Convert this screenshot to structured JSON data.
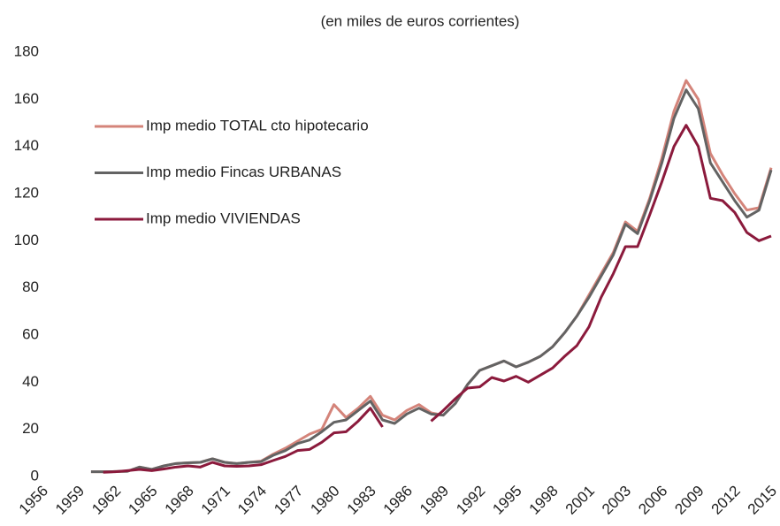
{
  "chart_data": {
    "type": "line",
    "subtitle": "(en miles de euros corrientes)",
    "categories": [
      "1956",
      null,
      null,
      "1959",
      null,
      null,
      "1962",
      null,
      null,
      "1965",
      null,
      null,
      "1968",
      null,
      null,
      "1971",
      null,
      null,
      "1974",
      null,
      null,
      "1977",
      null,
      null,
      "1980",
      null,
      null,
      "1983",
      null,
      null,
      "1986",
      null,
      null,
      "1989",
      null,
      null,
      "1992",
      null,
      null,
      "1995",
      null,
      null,
      "1998",
      null,
      null,
      "2001",
      null,
      null,
      "2003",
      null,
      null,
      "2006",
      null,
      null,
      "2009",
      null,
      null,
      "2012",
      null,
      null,
      "2015"
    ],
    "series": [
      {
        "name": "Imp medio TOTAL cto hipotecario",
        "color": "#d4847a",
        "values": [
          null,
          null,
          null,
          null,
          2,
          2,
          2.1,
          2.2,
          4,
          3,
          4.5,
          5.5,
          5.8,
          6,
          7.5,
          6,
          5.5,
          6,
          6.5,
          9.5,
          12,
          15,
          18,
          20,
          30.5,
          25,
          29,
          34,
          26,
          24,
          28,
          30.5,
          27,
          26,
          31,
          39,
          45,
          47,
          49,
          46.5,
          48.5,
          51,
          55,
          61,
          68,
          77,
          86,
          95,
          108,
          104,
          118,
          135,
          155,
          168,
          160,
          137,
          128,
          120,
          113,
          114,
          131
        ]
      },
      {
        "name": "Imp medio Fincas URBANAS",
        "color": "#636363",
        "values": [
          null,
          null,
          null,
          null,
          2,
          2,
          2.1,
          2.2,
          4,
          3,
          4.5,
          5.5,
          5.8,
          6,
          7.5,
          6,
          5.5,
          6,
          6.3,
          9,
          11,
          14,
          15.5,
          19,
          23,
          24,
          28,
          32,
          24,
          22.5,
          26.5,
          29,
          26.5,
          26,
          31,
          39,
          45,
          47,
          49,
          46.5,
          48.5,
          51,
          55,
          61,
          68,
          76,
          85,
          94,
          107,
          103,
          117,
          133,
          152,
          164,
          156,
          133,
          125,
          117,
          110,
          113,
          130
        ]
      },
      {
        "name": "Imp medio VIVIENDAS",
        "color": "#8b1a3c",
        "values": [
          null,
          null,
          null,
          null,
          null,
          1.8,
          2,
          2.5,
          3,
          2.5,
          3.2,
          4,
          4.5,
          4,
          6,
          4.5,
          4.3,
          4.5,
          5,
          6.8,
          8.5,
          11,
          11.5,
          14.5,
          18.5,
          19,
          23.5,
          29,
          21,
          null,
          null,
          null,
          23.5,
          28,
          33,
          37.5,
          38,
          42,
          40.5,
          42.5,
          40,
          43,
          46,
          51,
          55.5,
          63.5,
          76,
          86,
          97.5,
          97.5,
          111,
          125,
          140,
          149,
          140,
          118,
          117,
          112,
          103.5,
          100,
          102
        ]
      }
    ],
    "ylim": [
      0,
      180
    ],
    "yticks": [
      0,
      20,
      40,
      60,
      80,
      100,
      120,
      140,
      160,
      180
    ],
    "grid": false,
    "legend": "upper left"
  }
}
